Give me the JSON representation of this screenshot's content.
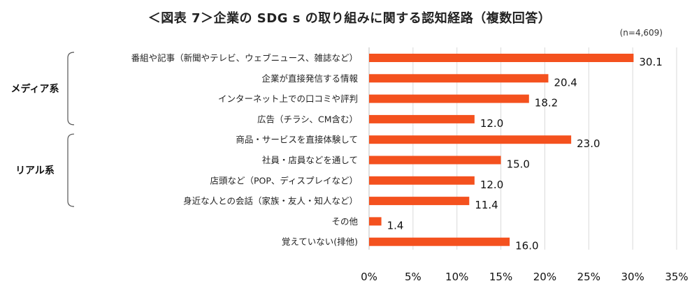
{
  "title": "＜図表 7＞企業の SDG s の取り組みに関する認知経路（複数回答）",
  "sample_note": "(n=4,609)",
  "chart_data": {
    "type": "bar",
    "orientation": "horizontal",
    "title": "＜図表 7＞企業の SDG s の取り組みに関する認知経路（複数回答）",
    "categories": [
      "番組や記事（新聞やテレビ、ウェブニュース、雑誌など）",
      "企業が直接発信する情報",
      "インターネット上での口コミや評判",
      "広告（チラシ、CM含む）",
      "商品・サービスを直接体験して",
      "社員・店員などを通して",
      "店頭など（POP、ディスプレイなど）",
      "身近な人との会話（家族・友人・知人など）",
      "その他",
      "覚えていない(排他)"
    ],
    "values": [
      30.1,
      20.4,
      18.2,
      12.0,
      23.0,
      15.0,
      12.0,
      11.4,
      1.4,
      16.0
    ],
    "value_labels": [
      "30.1",
      "20.4",
      "18.2",
      "12.0",
      "23.0",
      "15.0",
      "12.0",
      "11.4",
      "1.4",
      "16.0"
    ],
    "xlim": [
      0,
      35
    ],
    "ticks": [
      "0%",
      "5%",
      "10%",
      "15%",
      "20%",
      "25%",
      "30%",
      "35%"
    ],
    "tick_values": [
      0,
      5,
      10,
      15,
      20,
      25,
      30,
      35
    ],
    "groups": [
      {
        "label": "メディア系",
        "first": 0,
        "last": 3
      },
      {
        "label": "リアル系",
        "first": 4,
        "last": 7
      }
    ],
    "bar_color": "#F4511E",
    "grid": true,
    "grid_color": "#d9d9d9"
  }
}
